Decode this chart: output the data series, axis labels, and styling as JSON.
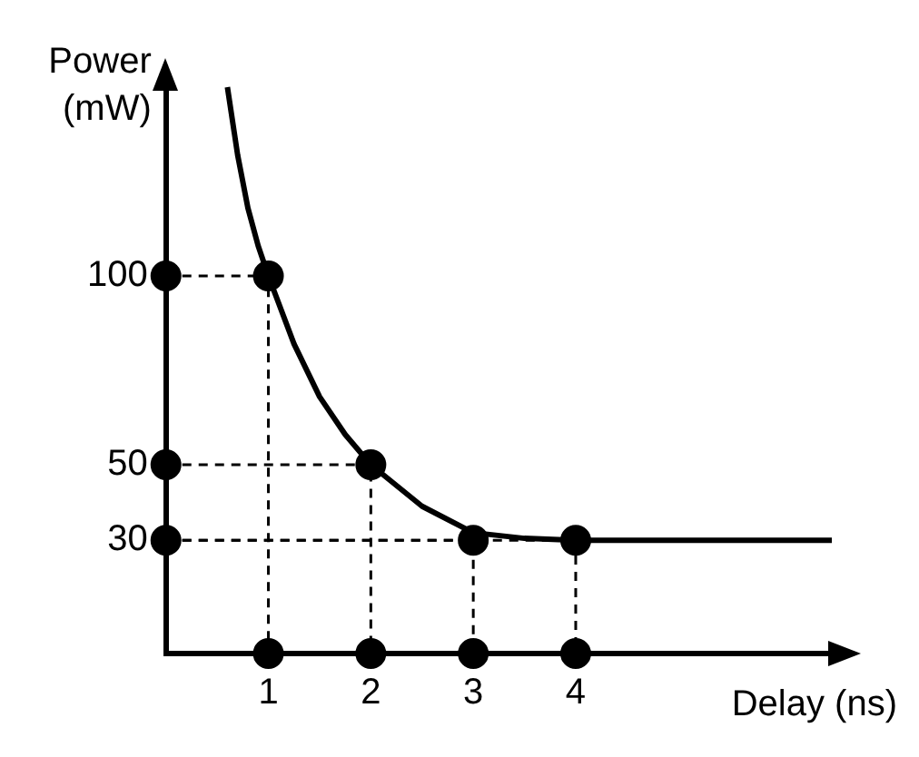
{
  "chart_data": {
    "type": "line",
    "xlabel": "Delay (ns)",
    "ylabel": "Power (mW)",
    "xlim": [
      0,
      6.5
    ],
    "xticks": [
      1,
      2,
      3,
      4
    ],
    "ylim": [
      0,
      150
    ],
    "yticks": [
      30,
      50,
      100
    ],
    "grid": false,
    "legend": false,
    "series": [
      {
        "type": "line",
        "color": "#000000",
        "marker": "none",
        "line_style": "solid",
        "x": [
          0.6,
          0.7,
          0.8,
          0.9,
          1,
          1.25,
          1.5,
          1.75,
          2,
          2.5,
          3,
          3.5,
          4,
          5,
          6,
          6.5
        ],
        "values": [
          150,
          132,
          118,
          108,
          100,
          82,
          68,
          58,
          50,
          39,
          32,
          30.5,
          30,
          30,
          30,
          30
        ]
      },
      {
        "type": "line",
        "color": "#000000",
        "marker": "none",
        "line_style": "dashed",
        "x": [
          0,
          1,
          1
        ],
        "values": [
          100,
          100,
          0
        ]
      },
      {
        "type": "line",
        "color": "#000000",
        "marker": "none",
        "line_style": "dashed",
        "x": [
          0,
          2,
          2
        ],
        "values": [
          50,
          50,
          0
        ]
      },
      {
        "type": "line",
        "color": "#000000",
        "marker": "none",
        "line_style": "dashed",
        "x": [
          0,
          3,
          3
        ],
        "values": [
          30,
          30,
          0
        ]
      },
      {
        "type": "line",
        "color": "#000000",
        "marker": "none",
        "line_style": "dashed",
        "x": [
          0,
          4,
          4
        ],
        "values": [
          30,
          30,
          0
        ]
      },
      {
        "type": "scatter",
        "color": "#000000",
        "marker": "circle",
        "x": [
          1,
          2,
          3,
          4
        ],
        "values": [
          100,
          50,
          30,
          30
        ]
      },
      {
        "type": "scatter",
        "color": "#000000",
        "marker": "circle",
        "x": [
          0,
          0,
          0,
          1,
          2,
          3,
          4
        ],
        "values": [
          100,
          50,
          30,
          0,
          0,
          0,
          0
        ]
      }
    ]
  }
}
